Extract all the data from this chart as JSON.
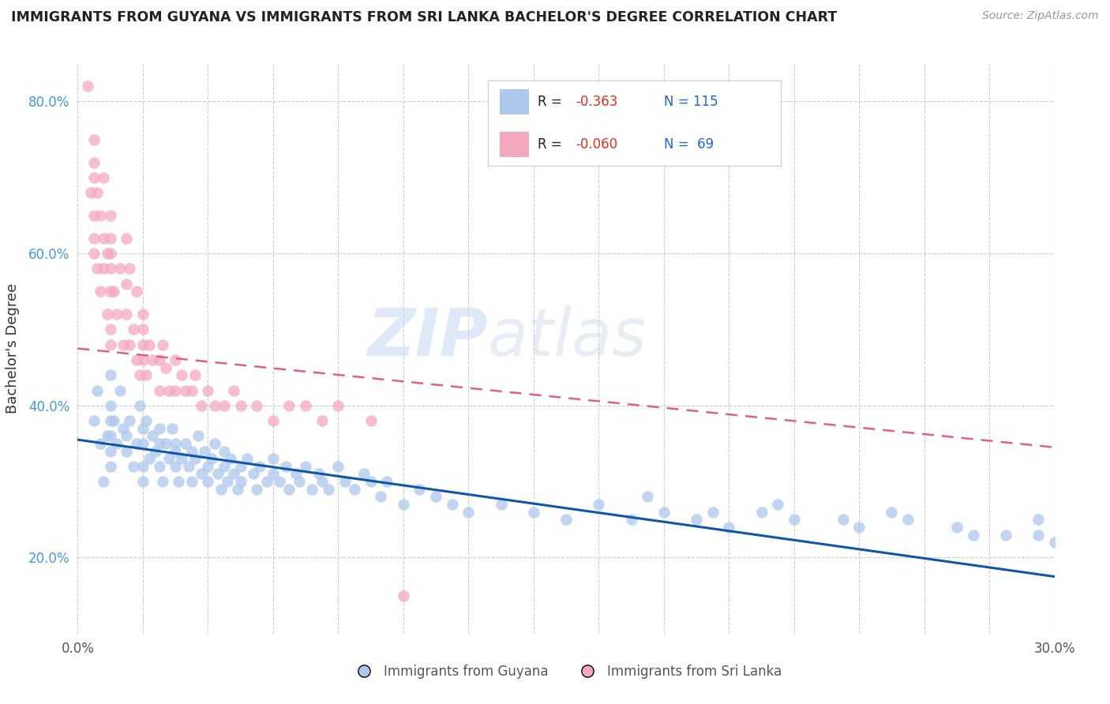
{
  "title": "IMMIGRANTS FROM GUYANA VS IMMIGRANTS FROM SRI LANKA BACHELOR'S DEGREE CORRELATION CHART",
  "source_text": "Source: ZipAtlas.com",
  "ylabel": "Bachelor's Degree",
  "xlim": [
    0.0,
    0.3
  ],
  "ylim": [
    0.1,
    0.85
  ],
  "guyana_R": -0.363,
  "guyana_N": 115,
  "srilanka_R": -0.06,
  "srilanka_N": 69,
  "guyana_color": "#adc8ed",
  "srilanka_color": "#f4a8be",
  "guyana_line_color": "#1155aa",
  "srilanka_line_color": "#e06080",
  "watermark_zip": "ZIP",
  "watermark_atlas": "atlas",
  "legend_label_guyana": "Immigrants from Guyana",
  "legend_label_srilanka": "Immigrants from Sri Lanka",
  "guyana_x": [
    0.005,
    0.006,
    0.007,
    0.008,
    0.009,
    0.01,
    0.01,
    0.01,
    0.01,
    0.01,
    0.01,
    0.011,
    0.012,
    0.013,
    0.014,
    0.015,
    0.015,
    0.016,
    0.017,
    0.018,
    0.019,
    0.02,
    0.02,
    0.02,
    0.02,
    0.021,
    0.022,
    0.023,
    0.024,
    0.025,
    0.025,
    0.025,
    0.026,
    0.027,
    0.028,
    0.029,
    0.03,
    0.03,
    0.03,
    0.031,
    0.032,
    0.033,
    0.034,
    0.035,
    0.035,
    0.036,
    0.037,
    0.038,
    0.039,
    0.04,
    0.04,
    0.041,
    0.042,
    0.043,
    0.044,
    0.045,
    0.045,
    0.046,
    0.047,
    0.048,
    0.049,
    0.05,
    0.05,
    0.052,
    0.054,
    0.055,
    0.056,
    0.058,
    0.06,
    0.06,
    0.062,
    0.064,
    0.065,
    0.067,
    0.068,
    0.07,
    0.072,
    0.074,
    0.075,
    0.077,
    0.08,
    0.082,
    0.085,
    0.088,
    0.09,
    0.093,
    0.095,
    0.1,
    0.105,
    0.11,
    0.115,
    0.12,
    0.13,
    0.14,
    0.15,
    0.16,
    0.17,
    0.18,
    0.19,
    0.2,
    0.21,
    0.22,
    0.24,
    0.25,
    0.27,
    0.285,
    0.295,
    0.3,
    0.175,
    0.195,
    0.215,
    0.235,
    0.255,
    0.275,
    0.295
  ],
  "guyana_y": [
    0.38,
    0.42,
    0.35,
    0.3,
    0.36,
    0.4,
    0.38,
    0.34,
    0.32,
    0.44,
    0.36,
    0.38,
    0.35,
    0.42,
    0.37,
    0.36,
    0.34,
    0.38,
    0.32,
    0.35,
    0.4,
    0.37,
    0.35,
    0.32,
    0.3,
    0.38,
    0.33,
    0.36,
    0.34,
    0.32,
    0.35,
    0.37,
    0.3,
    0.35,
    0.33,
    0.37,
    0.35,
    0.32,
    0.34,
    0.3,
    0.33,
    0.35,
    0.32,
    0.34,
    0.3,
    0.33,
    0.36,
    0.31,
    0.34,
    0.32,
    0.3,
    0.33,
    0.35,
    0.31,
    0.29,
    0.32,
    0.34,
    0.3,
    0.33,
    0.31,
    0.29,
    0.32,
    0.3,
    0.33,
    0.31,
    0.29,
    0.32,
    0.3,
    0.33,
    0.31,
    0.3,
    0.32,
    0.29,
    0.31,
    0.3,
    0.32,
    0.29,
    0.31,
    0.3,
    0.29,
    0.32,
    0.3,
    0.29,
    0.31,
    0.3,
    0.28,
    0.3,
    0.27,
    0.29,
    0.28,
    0.27,
    0.26,
    0.27,
    0.26,
    0.25,
    0.27,
    0.25,
    0.26,
    0.25,
    0.24,
    0.26,
    0.25,
    0.24,
    0.26,
    0.24,
    0.23,
    0.23,
    0.22,
    0.28,
    0.26,
    0.27,
    0.25,
    0.25,
    0.23,
    0.25
  ],
  "srilanka_x": [
    0.003,
    0.004,
    0.005,
    0.005,
    0.005,
    0.005,
    0.005,
    0.005,
    0.006,
    0.006,
    0.007,
    0.007,
    0.008,
    0.008,
    0.008,
    0.009,
    0.009,
    0.01,
    0.01,
    0.01,
    0.01,
    0.01,
    0.01,
    0.01,
    0.011,
    0.012,
    0.013,
    0.014,
    0.015,
    0.015,
    0.015,
    0.016,
    0.016,
    0.017,
    0.018,
    0.018,
    0.019,
    0.02,
    0.02,
    0.02,
    0.02,
    0.021,
    0.022,
    0.023,
    0.025,
    0.025,
    0.026,
    0.027,
    0.028,
    0.03,
    0.03,
    0.032,
    0.033,
    0.035,
    0.036,
    0.038,
    0.04,
    0.042,
    0.045,
    0.048,
    0.05,
    0.055,
    0.06,
    0.065,
    0.07,
    0.075,
    0.08,
    0.09,
    0.1
  ],
  "srilanka_y": [
    0.82,
    0.68,
    0.75,
    0.7,
    0.65,
    0.62,
    0.72,
    0.6,
    0.68,
    0.58,
    0.65,
    0.55,
    0.62,
    0.7,
    0.58,
    0.6,
    0.52,
    0.65,
    0.6,
    0.55,
    0.5,
    0.48,
    0.58,
    0.62,
    0.55,
    0.52,
    0.58,
    0.48,
    0.52,
    0.56,
    0.62,
    0.48,
    0.58,
    0.5,
    0.46,
    0.55,
    0.44,
    0.5,
    0.48,
    0.46,
    0.52,
    0.44,
    0.48,
    0.46,
    0.46,
    0.42,
    0.48,
    0.45,
    0.42,
    0.46,
    0.42,
    0.44,
    0.42,
    0.42,
    0.44,
    0.4,
    0.42,
    0.4,
    0.4,
    0.42,
    0.4,
    0.4,
    0.38,
    0.4,
    0.4,
    0.38,
    0.4,
    0.38,
    0.15
  ],
  "guyana_line_x0": 0.0,
  "guyana_line_y0": 0.355,
  "guyana_line_x1": 0.3,
  "guyana_line_y1": 0.175,
  "srilanka_line_x0": 0.0,
  "srilanka_line_y0": 0.475,
  "srilanka_line_x1": 0.3,
  "srilanka_line_y1": 0.345
}
